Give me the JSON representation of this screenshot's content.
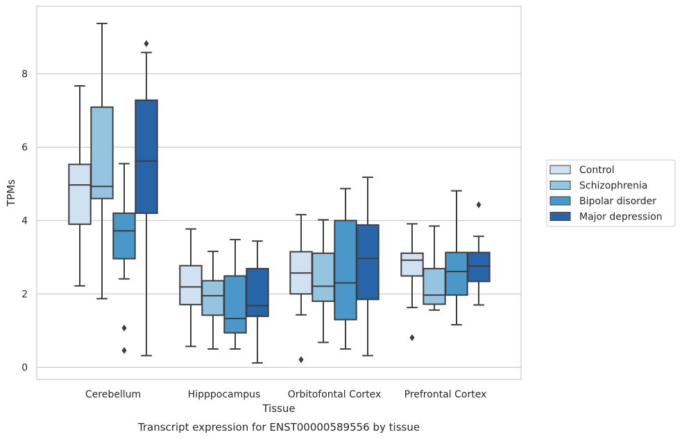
{
  "chart_data": {
    "type": "box",
    "xlabel": "Tissue",
    "ylabel": "TPMs",
    "caption": "Transcript expression for ENST00000589556 by tissue",
    "categories": [
      "Cerebellum",
      "Hipppocampus",
      "Orbitofontal Cortex",
      "Prefrontal Cortex"
    ],
    "ylim": [
      -0.3,
      9.85
    ],
    "yticks": [
      0,
      2,
      4,
      6,
      8
    ],
    "grid": "horizontal",
    "legend_position": "right",
    "series": [
      {
        "name": "Control",
        "color": "#d0e1f2",
        "boxes": [
          {
            "whislo": 2.22,
            "q1": 3.9,
            "med": 4.97,
            "q3": 5.53,
            "whishi": 7.67,
            "fliers": []
          },
          {
            "whislo": 0.57,
            "q1": 1.71,
            "med": 2.19,
            "q3": 2.77,
            "whishi": 3.77,
            "fliers": []
          },
          {
            "whislo": 1.43,
            "q1": 2.0,
            "med": 2.57,
            "q3": 3.15,
            "whishi": 4.16,
            "fliers": [
              0.21
            ]
          },
          {
            "whislo": 1.63,
            "q1": 2.49,
            "med": 2.92,
            "q3": 3.11,
            "whishi": 3.91,
            "fliers": [
              0.81
            ]
          }
        ]
      },
      {
        "name": "Schizophrenia",
        "color": "#94c4df",
        "boxes": [
          {
            "whislo": 1.87,
            "q1": 4.6,
            "med": 4.93,
            "q3": 7.09,
            "whishi": 9.37,
            "fliers": []
          },
          {
            "whislo": 0.5,
            "q1": 1.42,
            "med": 1.95,
            "q3": 2.36,
            "whishi": 3.16,
            "fliers": []
          },
          {
            "whislo": 0.68,
            "q1": 1.8,
            "med": 2.21,
            "q3": 3.11,
            "whishi": 4.02,
            "fliers": []
          },
          {
            "whislo": 1.56,
            "q1": 1.72,
            "med": 1.97,
            "q3": 2.69,
            "whishi": 3.85,
            "fliers": []
          }
        ]
      },
      {
        "name": "Bipolar disorder",
        "color": "#4a98c9",
        "boxes": [
          {
            "whislo": 2.41,
            "q1": 2.96,
            "med": 3.72,
            "q3": 4.2,
            "whishi": 5.55,
            "fliers": [
              1.07,
              0.46
            ]
          },
          {
            "whislo": 0.5,
            "q1": 0.94,
            "med": 1.33,
            "q3": 2.49,
            "whishi": 3.48,
            "fliers": []
          },
          {
            "whislo": 0.5,
            "q1": 1.3,
            "med": 2.3,
            "q3": 4.0,
            "whishi": 4.87,
            "fliers": []
          },
          {
            "whislo": 1.16,
            "q1": 1.97,
            "med": 2.61,
            "q3": 3.13,
            "whishi": 4.81,
            "fliers": []
          }
        ]
      },
      {
        "name": "Major depression",
        "color": "#2764a8",
        "boxes": [
          {
            "whislo": 0.32,
            "q1": 4.2,
            "med": 5.62,
            "q3": 7.28,
            "whishi": 8.58,
            "fliers": [
              8.82
            ]
          },
          {
            "whislo": 0.12,
            "q1": 1.39,
            "med": 1.68,
            "q3": 2.69,
            "whishi": 3.44,
            "fliers": []
          },
          {
            "whislo": 0.32,
            "q1": 1.85,
            "med": 2.97,
            "q3": 3.88,
            "whishi": 5.18,
            "fliers": []
          },
          {
            "whislo": 1.7,
            "q1": 2.34,
            "med": 2.76,
            "q3": 3.13,
            "whishi": 3.57,
            "fliers": [
              4.43
            ]
          }
        ]
      }
    ]
  }
}
